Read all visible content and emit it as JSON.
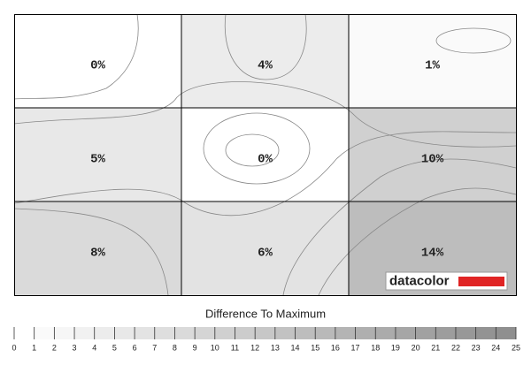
{
  "chart_data": {
    "type": "heatmap",
    "title": "Difference To Maximum",
    "values": [
      [
        0,
        4,
        1
      ],
      [
        5,
        0,
        10
      ],
      [
        8,
        6,
        14
      ]
    ],
    "value_labels": [
      [
        "0%",
        "4%",
        "1%"
      ],
      [
        "5%",
        "0%",
        "10%"
      ],
      [
        "8%",
        "6%",
        "14%"
      ]
    ],
    "colorbar_lim": [
      0,
      25
    ],
    "colorbar_ticks": [
      0,
      1,
      2,
      3,
      4,
      5,
      6,
      7,
      8,
      9,
      10,
      11,
      12,
      13,
      14,
      15,
      16,
      17,
      18,
      19,
      20,
      21,
      22,
      23,
      24,
      25
    ],
    "colors": [
      "#ffffff",
      "#8a8a8a"
    ],
    "logo": "datacolor"
  }
}
